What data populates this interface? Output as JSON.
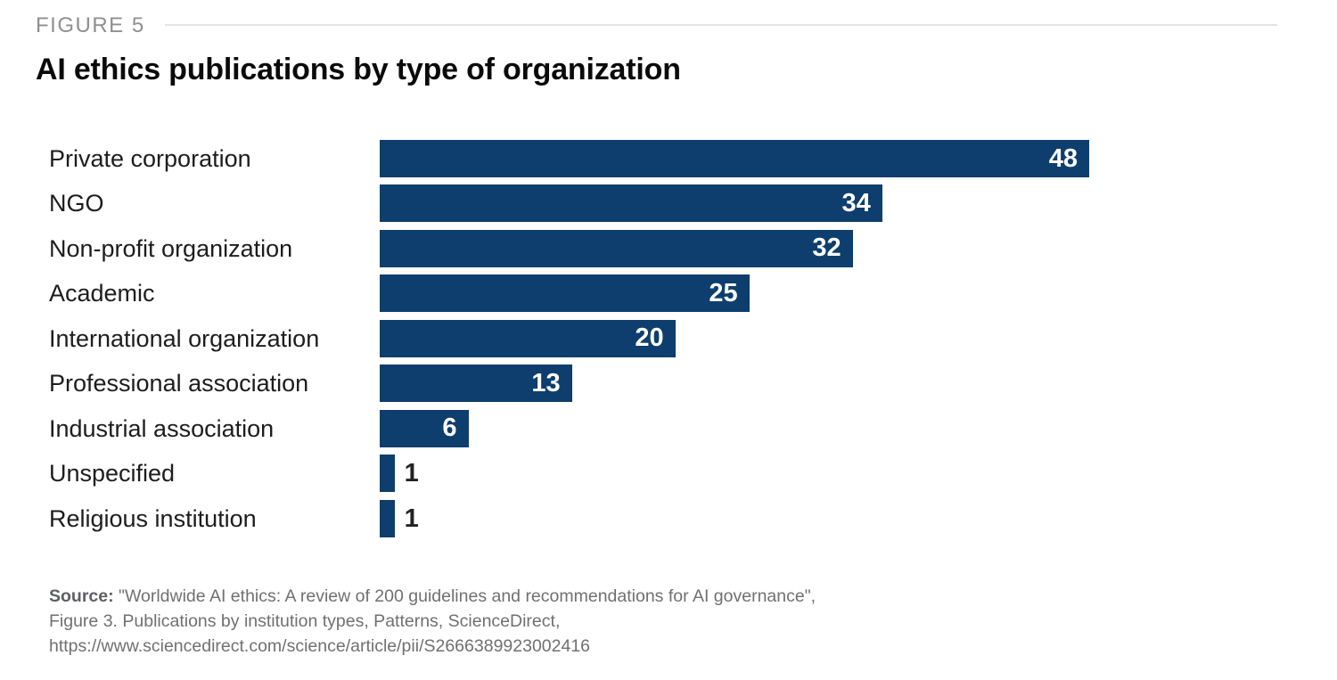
{
  "figure_label": "FIGURE 5",
  "title": "AI ethics publications by type of organization",
  "chart_data": {
    "type": "bar",
    "orientation": "horizontal",
    "title": "AI ethics publications by type of organization",
    "categories": [
      "Private corporation",
      "NGO",
      "Non-profit organization",
      "Academic",
      "International organization",
      "Professional association",
      "Industrial association",
      "Unspecified",
      "Religious institution"
    ],
    "values": [
      48,
      34,
      32,
      25,
      20,
      13,
      6,
      1,
      1
    ],
    "xlabel": "",
    "ylabel": "",
    "xlim": [
      0,
      48
    ],
    "grid": false,
    "legend": false,
    "value_labels": true,
    "bar_color": "#0e3e6d",
    "value_label_color_inside": "#ffffff",
    "value_label_color_outside": "#222222"
  },
  "source": {
    "label": "Source:",
    "lines": [
      "\"Worldwide AI ethics: A review of 200 guidelines and recommendations for AI governance\",",
      "Figure 3. Publications by institution types, Patterns, ScienceDirect,",
      "https://www.sciencedirect.com/science/article/pii/S2666389923002416"
    ]
  }
}
